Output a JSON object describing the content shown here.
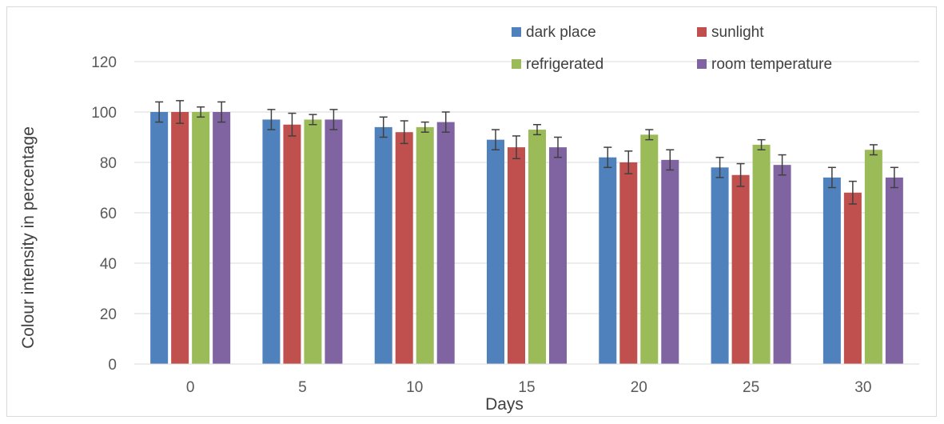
{
  "chart_data": {
    "type": "bar",
    "title": "",
    "xlabel": "Days",
    "ylabel": "Colour intensity in percentage",
    "categories": [
      "0",
      "5",
      "10",
      "15",
      "20",
      "25",
      "30"
    ],
    "ylim": [
      0,
      120
    ],
    "yticks": [
      0,
      20,
      40,
      60,
      80,
      100,
      120
    ],
    "grid": true,
    "legend_position": "top-right",
    "series": [
      {
        "name": "dark place",
        "color": "#4f81bd",
        "values": [
          100,
          97,
          94,
          89,
          82,
          78,
          74
        ],
        "errors": [
          4,
          4,
          4,
          4,
          4,
          4,
          4
        ]
      },
      {
        "name": "sunlight",
        "color": "#c0504d",
        "values": [
          100,
          95,
          92,
          86,
          80,
          75,
          68
        ],
        "errors": [
          4.5,
          4.5,
          4.5,
          4.5,
          4.5,
          4.5,
          4.5
        ]
      },
      {
        "name": "refrigerated",
        "color": "#9bbb59",
        "values": [
          100,
          97,
          94,
          93,
          91,
          87,
          85
        ],
        "errors": [
          2,
          2,
          2,
          2,
          2,
          2,
          2
        ]
      },
      {
        "name": "room temperature",
        "color": "#8064a2",
        "values": [
          100,
          97,
          96,
          86,
          81,
          79,
          74
        ],
        "errors": [
          4,
          4,
          4,
          4,
          4,
          4,
          4
        ]
      }
    ]
  }
}
